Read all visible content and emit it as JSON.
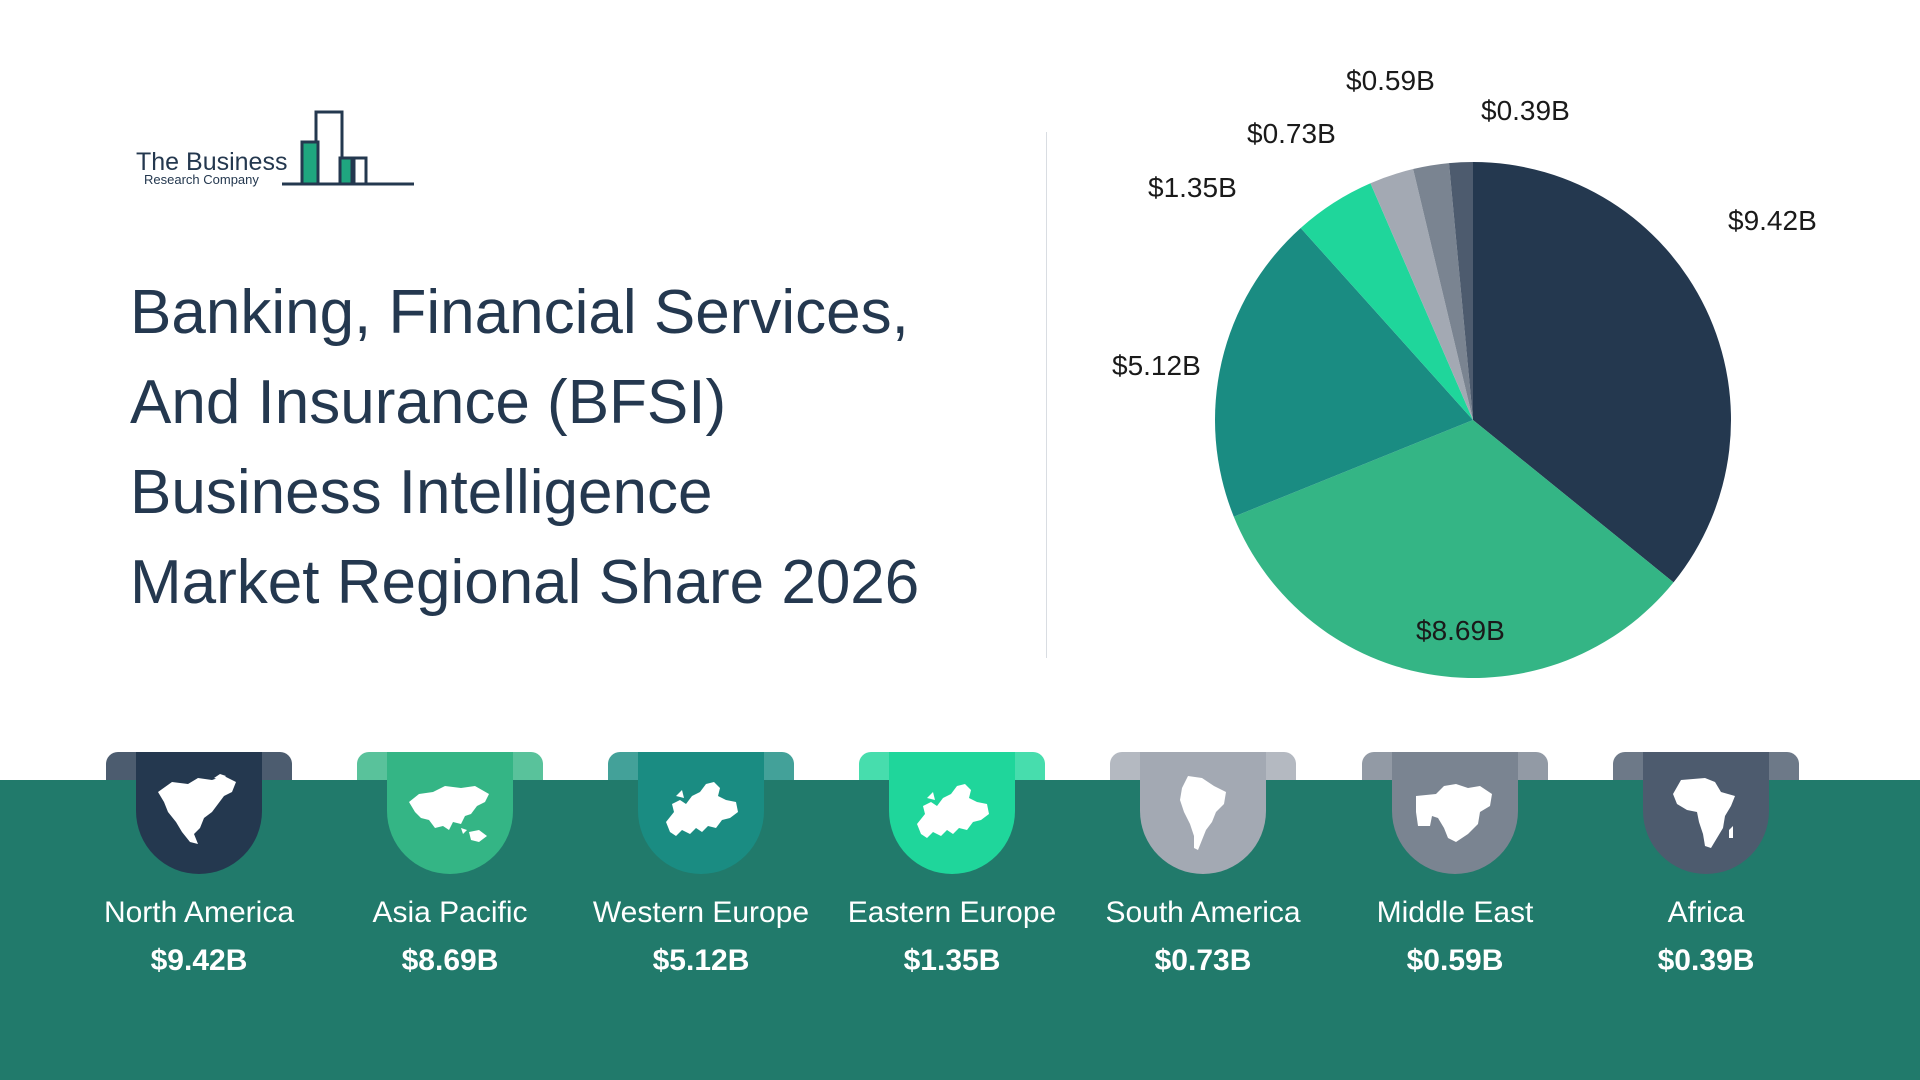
{
  "logo": {
    "line1": "The Business",
    "line2": "Research Company"
  },
  "title_lines": [
    "Banking, Financial Services,",
    "And Insurance (BFSI)",
    "Business Intelligence",
    "Market Regional Share 2026"
  ],
  "colors": {
    "north_america": "#24384f",
    "asia_pacific": "#34b585",
    "western_europe": "#1a8c82",
    "eastern_europe": "#1fd69b",
    "south_america": "#a3a9b3",
    "middle_east": "#7a8491",
    "africa": "#4d5b6e",
    "band": "#217a6b"
  },
  "chart_data": {
    "type": "pie",
    "title": "Banking, Financial Services, And Insurance (BFSI) Business Intelligence Market Regional Share 2026",
    "unit": "$B",
    "slices": [
      {
        "name": "North America",
        "value": 9.42,
        "label": "$9.42B",
        "color": "#24384f"
      },
      {
        "name": "Asia Pacific",
        "value": 8.69,
        "label": "$8.69B",
        "color": "#34b585"
      },
      {
        "name": "Western Europe",
        "value": 5.12,
        "label": "$5.12B",
        "color": "#1a8c82"
      },
      {
        "name": "Eastern Europe",
        "value": 1.35,
        "label": "$1.35B",
        "color": "#1fd69b"
      },
      {
        "name": "South America",
        "value": 0.73,
        "label": "$0.73B",
        "color": "#a3a9b3"
      },
      {
        "name": "Middle East",
        "value": 0.59,
        "label": "$0.59B",
        "color": "#7a8491"
      },
      {
        "name": "Africa",
        "value": 0.39,
        "label": "$0.39B",
        "color": "#4d5b6e"
      }
    ]
  },
  "regions": [
    {
      "name": "North America",
      "value": "$9.42B",
      "icon": "north-america-map-icon"
    },
    {
      "name": "Asia Pacific",
      "value": "$8.69B",
      "icon": "asia-map-icon"
    },
    {
      "name": "Western Europe",
      "value": "$5.12B",
      "icon": "europe-map-icon"
    },
    {
      "name": "Eastern Europe",
      "value": "$1.35B",
      "icon": "europe-map-icon"
    },
    {
      "name": "South America",
      "value": "$0.73B",
      "icon": "south-america-map-icon"
    },
    {
      "name": "Middle East",
      "value": "$0.59B",
      "icon": "middle-east-map-icon"
    },
    {
      "name": "Africa",
      "value": "$0.39B",
      "icon": "africa-map-icon"
    }
  ]
}
